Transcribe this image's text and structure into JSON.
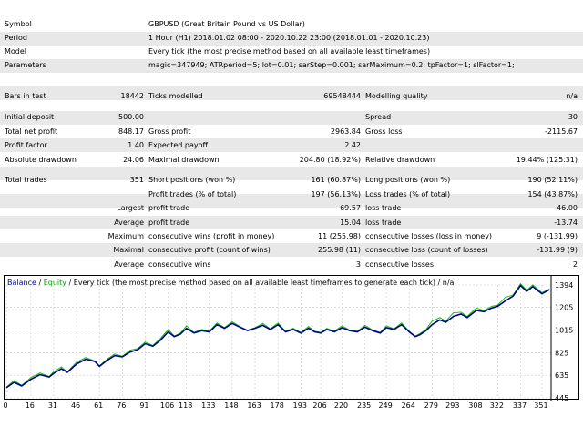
{
  "report": {
    "rows": [
      {
        "label": "Symbol",
        "value": "GBPUSD (Great Britain Pound vs US Dollar)"
      },
      {
        "label": "Period",
        "value": "1 Hour (H1) 2018.01.02 08:00 - 2020.10.22 23:00 (2018.01.01 - 2020.10.23)"
      },
      {
        "label": "Model",
        "value": "Every tick (the most precise method based on all available least timeframes)"
      },
      {
        "label": "Parameters",
        "value": "magic=347949; ATRperiod=5; lot=0.01; sarStep=0.001; sarMaximum=0.2; tpFactor=1; slFactor=1;"
      }
    ],
    "bars_in_test": {
      "label": "Bars in test",
      "value": "18442"
    },
    "ticks_modelled": {
      "label": "Ticks modelled",
      "value": "69548444"
    },
    "modelling_quality": {
      "label": "Modelling quality",
      "value": "n/a"
    },
    "initial_deposit": {
      "label": "Initial deposit",
      "value": "500.00"
    },
    "spread": {
      "label": "Spread",
      "value": "30"
    },
    "total_net_profit": {
      "label": "Total net profit",
      "value": "848.17"
    },
    "gross_profit": {
      "label": "Gross profit",
      "value": "2963.84"
    },
    "gross_loss": {
      "label": "Gross loss",
      "value": "-2115.67"
    },
    "profit_factor": {
      "label": "Profit factor",
      "value": "1.40"
    },
    "expected_payoff": {
      "label": "Expected payoff",
      "value": "2.42"
    },
    "absolute_drawdown": {
      "label": "Absolute drawdown",
      "value": "24.06"
    },
    "maximal_drawdown": {
      "label": "Maximal drawdown",
      "value": "204.80 (18.92%)"
    },
    "relative_drawdown": {
      "label": "Relative drawdown",
      "value": "19.44% (125.31)"
    },
    "total_trades": {
      "label": "Total trades",
      "value": "351"
    },
    "short_positions": {
      "label": "Short positions (won %)",
      "value": "161 (60.87%)"
    },
    "long_positions": {
      "label": "Long positions (won %)",
      "value": "190 (52.11%)"
    },
    "profit_trades": {
      "label": "Profit trades (% of total)",
      "value": "197 (56.13%)"
    },
    "loss_trades": {
      "label": "Loss trades (% of total)",
      "value": "154 (43.87%)"
    },
    "largest_label": "Largest",
    "largest_profit": {
      "label": "profit trade",
      "value": "69.57"
    },
    "largest_loss": {
      "label": "loss trade",
      "value": "-46.00"
    },
    "average_label": "Average",
    "average_profit": {
      "label": "profit trade",
      "value": "15.04"
    },
    "average_loss": {
      "label": "loss trade",
      "value": "-13.74"
    },
    "maximum_label": "Maximum",
    "max_cons_wins": {
      "label": "consecutive wins (profit in money)",
      "value": "11 (255.98)"
    },
    "max_cons_losses": {
      "label": "consecutive losses (loss in money)",
      "value": "9 (-131.99)"
    },
    "maximal_label": "Maximal",
    "maximal_cons_profit": {
      "label": "consecutive profit (count of wins)",
      "value": "255.98 (11)"
    },
    "maximal_cons_loss": {
      "label": "consecutive loss (count of losses)",
      "value": "-131.99 (9)"
    },
    "average2_label": "Average",
    "avg_cons_wins": {
      "label": "consecutive wins",
      "value": "3"
    },
    "avg_cons_losses": {
      "label": "consecutive losses",
      "value": "2"
    }
  },
  "chart_legend": {
    "balance": "Balance",
    "sep1": " / ",
    "equity": "Equity",
    "rest": " / Every tick (the most precise method based on all available least timeframes to generate each tick) / n/a"
  },
  "colors": {
    "balance": "#00008b",
    "equity": "#00c000",
    "grid": "#c8c8c8",
    "row_alt": "#e8e8e8"
  },
  "chart_data": {
    "type": "line",
    "title": "",
    "x_ticks": [
      "0",
      "16",
      "31",
      "46",
      "61",
      "76",
      "91",
      "106",
      "118",
      "133",
      "148",
      "163",
      "178",
      "193",
      "206",
      "220",
      "235",
      "249",
      "264",
      "279",
      "293",
      "308",
      "322",
      "337",
      "351"
    ],
    "y_ticks": [
      "1394",
      "1205",
      "1015",
      "825",
      "635",
      "445"
    ],
    "ylim": [
      445,
      1394
    ],
    "xlim": [
      0,
      357
    ],
    "series": [
      {
        "name": "Balance",
        "x": [
          0,
          5,
          10,
          16,
          22,
          28,
          31,
          36,
          40,
          46,
          52,
          58,
          61,
          66,
          71,
          76,
          81,
          86,
          91,
          96,
          101,
          106,
          110,
          114,
          118,
          123,
          128,
          133,
          138,
          143,
          148,
          153,
          158,
          163,
          168,
          173,
          178,
          183,
          188,
          193,
          198,
          202,
          206,
          210,
          215,
          220,
          225,
          230,
          235,
          240,
          245,
          249,
          254,
          259,
          264,
          268,
          271,
          275,
          279,
          284,
          288,
          293,
          298,
          302,
          308,
          313,
          318,
          322,
          327,
          332,
          337,
          341,
          345,
          351,
          356
        ],
        "y": [
          530,
          575,
          545,
          600,
          640,
          620,
          650,
          690,
          660,
          730,
          770,
          750,
          710,
          760,
          800,
          790,
          830,
          850,
          900,
          880,
          930,
          1000,
          960,
          980,
          1030,
          990,
          1010,
          1000,
          1060,
          1030,
          1070,
          1040,
          1010,
          1030,
          1055,
          1020,
          1060,
          1000,
          1020,
          990,
          1030,
          1000,
          990,
          1020,
          1000,
          1035,
          1010,
          1000,
          1040,
          1010,
          990,
          1035,
          1020,
          1060,
          1000,
          960,
          975,
          1010,
          1060,
          1100,
          1080,
          1130,
          1150,
          1120,
          1180,
          1170,
          1200,
          1215,
          1260,
          1300,
          1390,
          1340,
          1380,
          1320,
          1355
        ]
      },
      {
        "name": "Equity",
        "x": [
          0,
          5,
          10,
          16,
          22,
          28,
          31,
          36,
          40,
          46,
          52,
          58,
          61,
          66,
          71,
          76,
          81,
          86,
          91,
          96,
          101,
          106,
          110,
          114,
          118,
          123,
          128,
          133,
          138,
          143,
          148,
          153,
          158,
          163,
          168,
          173,
          178,
          183,
          188,
          193,
          198,
          202,
          206,
          210,
          215,
          220,
          225,
          230,
          235,
          240,
          245,
          249,
          254,
          259,
          264,
          268,
          271,
          275,
          279,
          284,
          288,
          293,
          298,
          302,
          308,
          313,
          318,
          322,
          327,
          332,
          337,
          341,
          345,
          351,
          356
        ],
        "y": [
          535,
          590,
          550,
          615,
          655,
          625,
          665,
          705,
          665,
          745,
          785,
          755,
          715,
          770,
          815,
          795,
          845,
          860,
          915,
          885,
          945,
          1020,
          965,
          990,
          1050,
          995,
          1020,
          1005,
          1075,
          1035,
          1085,
          1045,
          1015,
          1035,
          1070,
          1025,
          1075,
          1005,
          1030,
          995,
          1045,
          1005,
          995,
          1030,
          1005,
          1050,
          1015,
          1005,
          1055,
          1015,
          995,
          1050,
          1025,
          1075,
          1005,
          965,
          985,
          1020,
          1090,
          1120,
          1090,
          1160,
          1165,
          1130,
          1200,
          1180,
          1215,
          1225,
          1290,
          1310,
          1405,
          1350,
          1395,
          1330,
          1360
        ]
      }
    ]
  }
}
